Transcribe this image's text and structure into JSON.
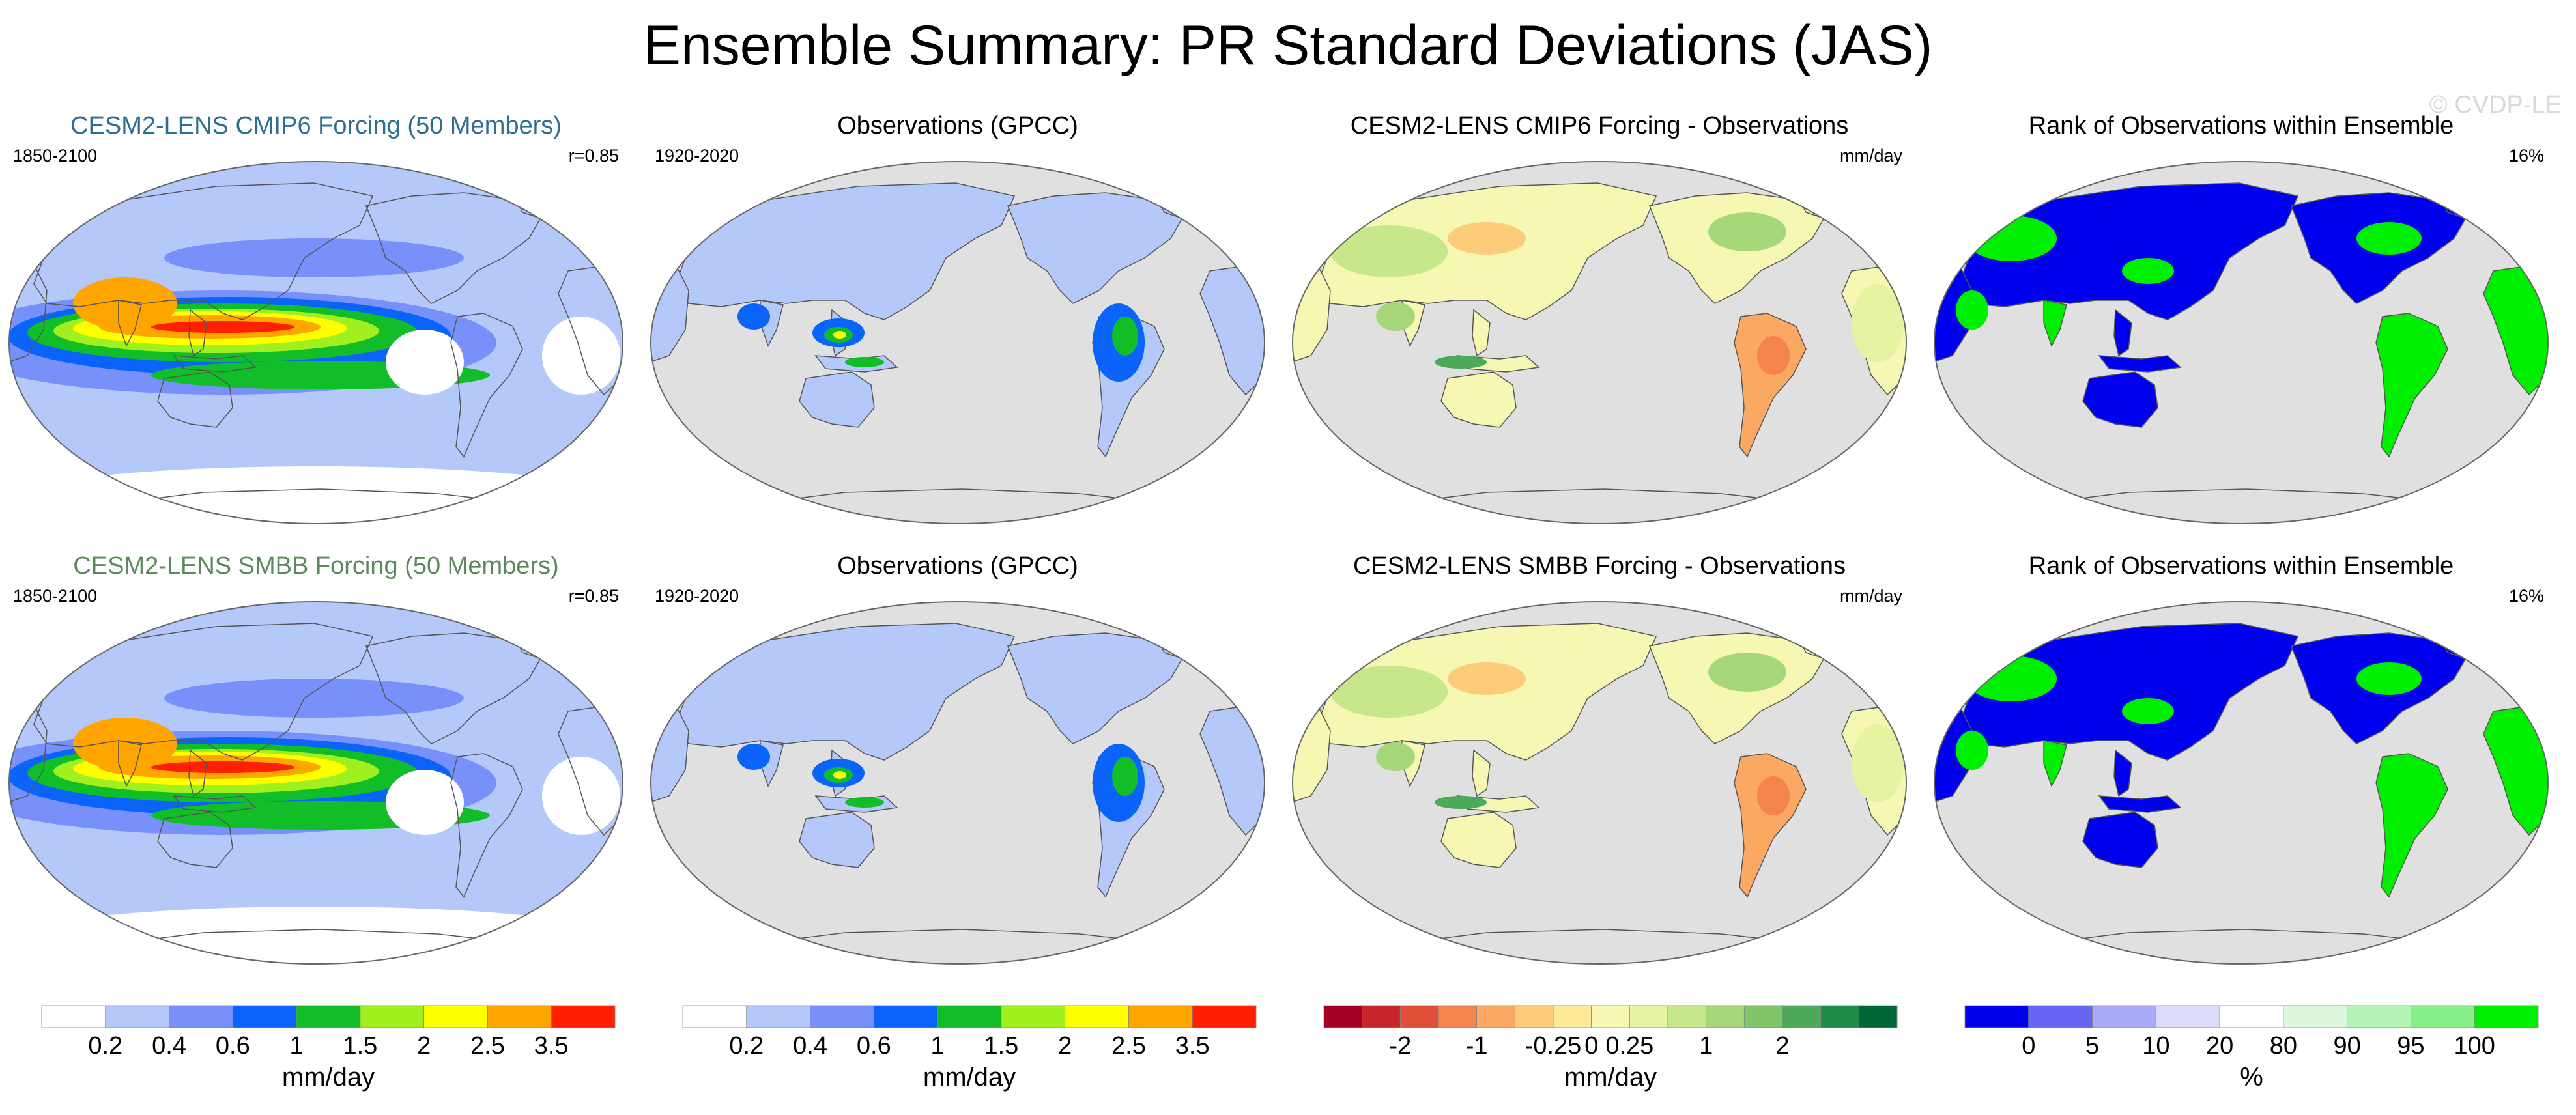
{
  "title": "Ensemble Summary: PR Standard Deviations (JAS)",
  "watermark": "© CVDP-LE",
  "colors": {
    "ocean": "#e0e0e0",
    "coast": "#555555",
    "title_blue": "#2e6e8e",
    "title_green": "#5a8a5a"
  },
  "rows": [
    {
      "panels": [
        {
          "title": "CESM2-LENS CMIP6 Forcing (50 Members)",
          "title_color": "#2e6e8e",
          "left": "1850-2100",
          "right": "r=0.85",
          "kind": "model"
        },
        {
          "title": "Observations (GPCC)",
          "left": "1920-2020",
          "right": "",
          "kind": "obs"
        },
        {
          "title": "CESM2-LENS CMIP6 Forcing - Observations",
          "left": "",
          "right": "mm/day",
          "kind": "diff"
        },
        {
          "title": "Rank of Observations within Ensemble",
          "left": "",
          "right": "16%",
          "kind": "rank"
        }
      ]
    },
    {
      "panels": [
        {
          "title": "CESM2-LENS SMBB Forcing (50 Members)",
          "title_color": "#5a8a5a",
          "left": "1850-2100",
          "right": "r=0.85",
          "kind": "model"
        },
        {
          "title": "Observations (GPCC)",
          "left": "1920-2020",
          "right": "",
          "kind": "obs"
        },
        {
          "title": "CESM2-LENS SMBB Forcing - Observations",
          "left": "",
          "right": "mm/day",
          "kind": "diff"
        },
        {
          "title": "Rank of Observations within Ensemble",
          "left": "",
          "right": "16%",
          "kind": "rank"
        }
      ]
    }
  ],
  "chart_data": [
    {
      "type": "colorbar",
      "name": "precip-sd",
      "unit": "mm/day",
      "colors": [
        "#ffffff",
        "#b4c8fa",
        "#7890fa",
        "#0a64fa",
        "#12be28",
        "#a0f020",
        "#ffff00",
        "#ffa500",
        "#ff2000"
      ],
      "boundaries": [
        0.2,
        0.4,
        0.6,
        1,
        1.5,
        2,
        2.5,
        3.5
      ],
      "tick_labels": [
        "0.2",
        "0.4",
        "0.6",
        "1",
        "1.5",
        "2",
        "2.5",
        "3.5"
      ]
    },
    {
      "type": "colorbar",
      "name": "precip-sd-obs",
      "unit": "mm/day",
      "colors": [
        "#ffffff",
        "#b4c8fa",
        "#7890fa",
        "#0a64fa",
        "#12be28",
        "#a0f020",
        "#ffff00",
        "#ffa500",
        "#ff2000"
      ],
      "boundaries": [
        0.2,
        0.4,
        0.6,
        1,
        1.5,
        2,
        2.5,
        3.5
      ],
      "tick_labels": [
        "0.2",
        "0.4",
        "0.6",
        "1",
        "1.5",
        "2",
        "2.5",
        "3.5"
      ]
    },
    {
      "type": "colorbar",
      "name": "difference",
      "unit": "mm/day",
      "colors": [
        "#a50026",
        "#c8242c",
        "#e04f39",
        "#f4834c",
        "#fba862",
        "#fdcc7b",
        "#fee999",
        "#f7f7b4",
        "#e6f3a0",
        "#c8e68a",
        "#a6d87a",
        "#7fc66a",
        "#4daa5a",
        "#1e8c46",
        "#006837"
      ],
      "tick_labels": [
        "-2",
        "-1",
        "-0.25",
        "0",
        "0.25",
        "1",
        "2"
      ],
      "tick_boundary_index": [
        2,
        4,
        6,
        7,
        8,
        10,
        12
      ]
    },
    {
      "type": "colorbar",
      "name": "rank",
      "unit": "%",
      "colors": [
        "#0000f0",
        "#6666f4",
        "#aaaaf8",
        "#dcdcfa",
        "#ffffff",
        "#dcf8dc",
        "#b4f4b4",
        "#88f088",
        "#00ee00"
      ],
      "tick_labels": [
        "0",
        "5",
        "10",
        "20",
        "80",
        "90",
        "95",
        "100"
      ],
      "tick_boundary_index": [
        1,
        2,
        3,
        4,
        5,
        6,
        7,
        8
      ]
    }
  ]
}
